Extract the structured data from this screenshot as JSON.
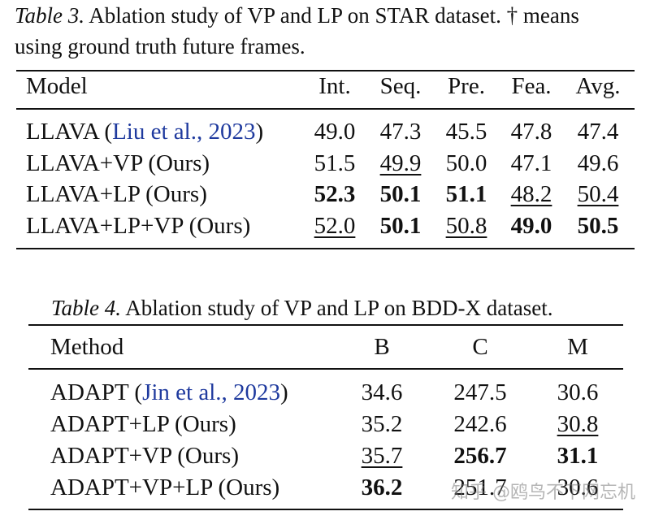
{
  "table3": {
    "caption_label": "Table 3.",
    "caption_text_1": " Ablation study of VP and LP on STAR dataset. † means",
    "caption_text_2": "using ground truth future frames.",
    "headers": [
      "Model",
      "Int.",
      "Seq.",
      "Pre.",
      "Fea.",
      "Avg."
    ],
    "rows": [
      {
        "model": "LLAVA (",
        "cite": "Liu et al., 2023",
        "model_end": ")",
        "values": [
          "49.0",
          "47.3",
          "45.5",
          "47.8",
          "47.4"
        ]
      },
      {
        "model": "LLAVA+VP (Ours)",
        "values": [
          "51.5",
          "49.9",
          "50.0",
          "47.1",
          "49.6"
        ]
      },
      {
        "model": "LLAVA+LP (Ours)",
        "values": [
          "52.3",
          "50.1",
          "51.1",
          "48.2",
          "50.4"
        ]
      },
      {
        "model": "LLAVA+LP+VP (Ours)",
        "values": [
          "52.0",
          "50.1",
          "50.8",
          "49.0",
          "50.5"
        ]
      }
    ]
  },
  "table4": {
    "caption_label": "Table 4.",
    "caption_text": " Ablation study of VP and LP on BDD-X dataset.",
    "headers": [
      "Method",
      "B",
      "C",
      "M"
    ],
    "rows": [
      {
        "model": "ADAPT (",
        "cite": "Jin et al., 2023",
        "model_end": ")",
        "values": [
          "34.6",
          "247.5",
          "30.6"
        ]
      },
      {
        "model": "ADAPT+LP (Ours)",
        "values": [
          "35.2",
          "242.6",
          "30.8"
        ]
      },
      {
        "model": "ADAPT+VP (Ours)",
        "values": [
          "35.7",
          "256.7",
          "31.1"
        ]
      },
      {
        "model": "ADAPT+VP+LP (Ours)",
        "values": [
          "36.2",
          "251.7",
          "30.6"
        ]
      }
    ]
  },
  "watermark": "知乎 @鸥鸟不下网忘机"
}
